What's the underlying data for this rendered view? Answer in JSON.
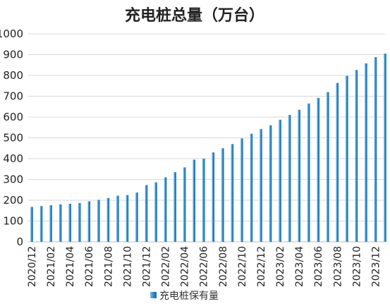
{
  "chart_data": {
    "type": "bar",
    "title": "充电桩总量（万台）",
    "legend": {
      "label": "充电桩保有量",
      "placement": "bottom"
    },
    "ylim": [
      0,
      1000
    ],
    "yticks": [
      0,
      100,
      200,
      300,
      400,
      500,
      600,
      700,
      800,
      900,
      1000
    ],
    "grid": true,
    "color": "#2a86c5",
    "categories": [
      "2020/12",
      "2021/01",
      "2021/02",
      "2021/03",
      "2021/04",
      "2021/05",
      "2021/06",
      "2021/07",
      "2021/08",
      "2021/09",
      "2021/10",
      "2021/11",
      "2021/12",
      "2022/01",
      "2022/02",
      "2022/03",
      "2022/04",
      "2022/05",
      "2022/06",
      "2022/07",
      "2022/08",
      "2022/09",
      "2022/10",
      "2022/11",
      "2022/12",
      "2023/01",
      "2023/02",
      "2023/03",
      "2023/04",
      "2023/05",
      "2023/06",
      "2023/07",
      "2023/08",
      "2023/09",
      "2023/10",
      "2023/11",
      "2023/12",
      "2024/01"
    ],
    "tick_labels": [
      "2020/12",
      "2021/02",
      "2021/04",
      "2021/06",
      "2021/08",
      "2021/10",
      "2021/12",
      "2022/02",
      "2022/04",
      "2022/06",
      "2022/08",
      "2022/10",
      "2022/12",
      "2023/02",
      "2023/04",
      "2023/06",
      "2023/08",
      "2023/10",
      "2023/12"
    ],
    "series": [
      {
        "name": "充电桩保有量",
        "values": [
          168,
          172,
          176,
          180,
          183,
          187,
          195,
          202,
          211,
          222,
          225,
          237,
          273,
          286,
          310,
          335,
          358,
          395,
          400,
          430,
          450,
          470,
          497,
          520,
          542,
          560,
          587,
          610,
          635,
          665,
          692,
          720,
          764,
          798,
          826,
          858,
          888,
          905
        ]
      }
    ]
  }
}
